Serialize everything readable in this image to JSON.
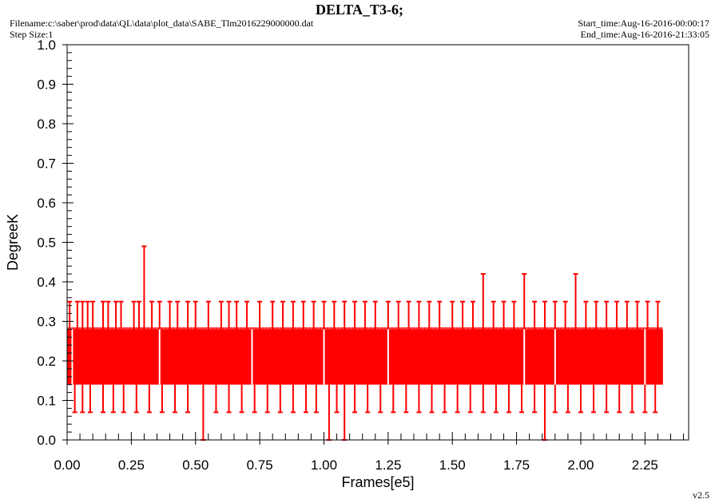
{
  "header": {
    "title": "DELTA_T3-6;",
    "filename": "Filename:c:\\saber\\prod\\data\\QL\\data\\plot_data\\SABE_Tlm2016229000000.dat",
    "step_size": "Step Size:1",
    "start_time": "Start_time:Aug-16-2016-00:00:17",
    "end_time": "End_time:Aug-16-2016-21:33:05"
  },
  "version": "v2.5",
  "colors": {
    "series": "#ff0000",
    "axis": "#000000",
    "background": "#ffffff"
  },
  "chart_data": {
    "type": "line",
    "xlabel": "Frames[e5]",
    "ylabel": "DegreeK",
    "xlim": [
      0.0,
      2.42
    ],
    "ylim": [
      0.0,
      1.0
    ],
    "x_ticks": [
      "0.00",
      "0.25",
      "0.50",
      "0.75",
      "1.00",
      "1.25",
      "1.50",
      "1.75",
      "2.00",
      "2.25"
    ],
    "y_ticks": [
      "0.0",
      "0.1",
      "0.2",
      "0.3",
      "0.4",
      "0.5",
      "0.6",
      "0.7",
      "0.8",
      "0.9",
      "1.0"
    ],
    "grid": false,
    "series": [
      {
        "band": {
          "x_start": 0.0,
          "x_end": 2.32,
          "y_low": 0.14,
          "y_high": 0.28
        },
        "high_spikes": [
          {
            "x": 0.01,
            "y": 0.35
          },
          {
            "x": 0.04,
            "y": 0.35
          },
          {
            "x": 0.06,
            "y": 0.35
          },
          {
            "x": 0.08,
            "y": 0.35
          },
          {
            "x": 0.1,
            "y": 0.35
          },
          {
            "x": 0.14,
            "y": 0.35
          },
          {
            "x": 0.16,
            "y": 0.35
          },
          {
            "x": 0.19,
            "y": 0.35
          },
          {
            "x": 0.21,
            "y": 0.35
          },
          {
            "x": 0.26,
            "y": 0.35
          },
          {
            "x": 0.28,
            "y": 0.35
          },
          {
            "x": 0.3,
            "y": 0.49
          },
          {
            "x": 0.33,
            "y": 0.35
          },
          {
            "x": 0.36,
            "y": 0.35
          },
          {
            "x": 0.4,
            "y": 0.35
          },
          {
            "x": 0.43,
            "y": 0.35
          },
          {
            "x": 0.47,
            "y": 0.35
          },
          {
            "x": 0.5,
            "y": 0.35
          },
          {
            "x": 0.55,
            "y": 0.35
          },
          {
            "x": 0.6,
            "y": 0.35
          },
          {
            "x": 0.63,
            "y": 0.35
          },
          {
            "x": 0.66,
            "y": 0.35
          },
          {
            "x": 0.7,
            "y": 0.35
          },
          {
            "x": 0.75,
            "y": 0.35
          },
          {
            "x": 0.8,
            "y": 0.35
          },
          {
            "x": 0.84,
            "y": 0.35
          },
          {
            "x": 0.88,
            "y": 0.35
          },
          {
            "x": 0.92,
            "y": 0.35
          },
          {
            "x": 0.96,
            "y": 0.35
          },
          {
            "x": 1.0,
            "y": 0.35
          },
          {
            "x": 1.04,
            "y": 0.35
          },
          {
            "x": 1.08,
            "y": 0.35
          },
          {
            "x": 1.12,
            "y": 0.35
          },
          {
            "x": 1.16,
            "y": 0.35
          },
          {
            "x": 1.2,
            "y": 0.35
          },
          {
            "x": 1.25,
            "y": 0.35
          },
          {
            "x": 1.29,
            "y": 0.35
          },
          {
            "x": 1.33,
            "y": 0.35
          },
          {
            "x": 1.37,
            "y": 0.35
          },
          {
            "x": 1.41,
            "y": 0.35
          },
          {
            "x": 1.45,
            "y": 0.35
          },
          {
            "x": 1.5,
            "y": 0.35
          },
          {
            "x": 1.54,
            "y": 0.35
          },
          {
            "x": 1.58,
            "y": 0.35
          },
          {
            "x": 1.62,
            "y": 0.42
          },
          {
            "x": 1.66,
            "y": 0.35
          },
          {
            "x": 1.7,
            "y": 0.35
          },
          {
            "x": 1.74,
            "y": 0.35
          },
          {
            "x": 1.78,
            "y": 0.42
          },
          {
            "x": 1.82,
            "y": 0.35
          },
          {
            "x": 1.86,
            "y": 0.35
          },
          {
            "x": 1.9,
            "y": 0.35
          },
          {
            "x": 1.94,
            "y": 0.35
          },
          {
            "x": 1.98,
            "y": 0.42
          },
          {
            "x": 2.02,
            "y": 0.35
          },
          {
            "x": 2.06,
            "y": 0.35
          },
          {
            "x": 2.1,
            "y": 0.35
          },
          {
            "x": 2.14,
            "y": 0.35
          },
          {
            "x": 2.18,
            "y": 0.35
          },
          {
            "x": 2.22,
            "y": 0.35
          },
          {
            "x": 2.26,
            "y": 0.35
          },
          {
            "x": 2.3,
            "y": 0.35
          }
        ],
        "low_spikes": [
          {
            "x": 0.03,
            "y": 0.07
          },
          {
            "x": 0.06,
            "y": 0.07
          },
          {
            "x": 0.09,
            "y": 0.07
          },
          {
            "x": 0.14,
            "y": 0.07
          },
          {
            "x": 0.18,
            "y": 0.07
          },
          {
            "x": 0.22,
            "y": 0.07
          },
          {
            "x": 0.27,
            "y": 0.07
          },
          {
            "x": 0.32,
            "y": 0.07
          },
          {
            "x": 0.37,
            "y": 0.07
          },
          {
            "x": 0.42,
            "y": 0.07
          },
          {
            "x": 0.47,
            "y": 0.07
          },
          {
            "x": 0.53,
            "y": 0.0
          },
          {
            "x": 0.58,
            "y": 0.07
          },
          {
            "x": 0.63,
            "y": 0.07
          },
          {
            "x": 0.68,
            "y": 0.07
          },
          {
            "x": 0.73,
            "y": 0.07
          },
          {
            "x": 0.78,
            "y": 0.07
          },
          {
            "x": 0.83,
            "y": 0.07
          },
          {
            "x": 0.88,
            "y": 0.07
          },
          {
            "x": 0.93,
            "y": 0.07
          },
          {
            "x": 0.97,
            "y": 0.07
          },
          {
            "x": 1.02,
            "y": 0.0
          },
          {
            "x": 1.05,
            "y": 0.07
          },
          {
            "x": 1.08,
            "y": 0.0
          },
          {
            "x": 1.12,
            "y": 0.07
          },
          {
            "x": 1.17,
            "y": 0.07
          },
          {
            "x": 1.22,
            "y": 0.07
          },
          {
            "x": 1.27,
            "y": 0.07
          },
          {
            "x": 1.32,
            "y": 0.07
          },
          {
            "x": 1.37,
            "y": 0.07
          },
          {
            "x": 1.42,
            "y": 0.07
          },
          {
            "x": 1.47,
            "y": 0.07
          },
          {
            "x": 1.52,
            "y": 0.07
          },
          {
            "x": 1.57,
            "y": 0.07
          },
          {
            "x": 1.62,
            "y": 0.07
          },
          {
            "x": 1.67,
            "y": 0.07
          },
          {
            "x": 1.72,
            "y": 0.07
          },
          {
            "x": 1.77,
            "y": 0.07
          },
          {
            "x": 1.82,
            "y": 0.07
          },
          {
            "x": 1.86,
            "y": 0.0
          },
          {
            "x": 1.9,
            "y": 0.07
          },
          {
            "x": 1.95,
            "y": 0.07
          },
          {
            "x": 2.0,
            "y": 0.07
          },
          {
            "x": 2.05,
            "y": 0.07
          },
          {
            "x": 2.1,
            "y": 0.07
          },
          {
            "x": 2.15,
            "y": 0.07
          },
          {
            "x": 2.2,
            "y": 0.07
          },
          {
            "x": 2.25,
            "y": 0.07
          },
          {
            "x": 2.29,
            "y": 0.07
          }
        ],
        "mid_dips": [
          {
            "x": 0.02,
            "y": 0.2
          },
          {
            "x": 0.36,
            "y": 0.2
          },
          {
            "x": 0.72,
            "y": 0.2
          },
          {
            "x": 1.0,
            "y": 0.2
          },
          {
            "x": 1.25,
            "y": 0.2
          },
          {
            "x": 1.78,
            "y": 0.2
          },
          {
            "x": 1.9,
            "y": 0.2
          },
          {
            "x": 2.25,
            "y": 0.2
          }
        ]
      }
    ]
  }
}
